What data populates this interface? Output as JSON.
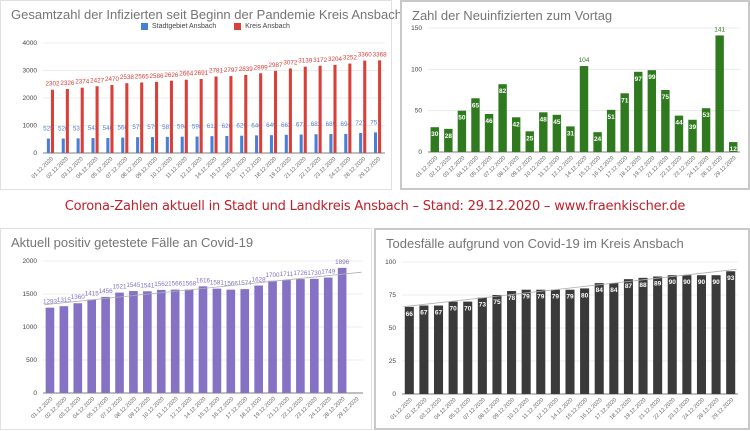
{
  "caption": "Corona-Zahlen aktuell in Stadt und Landkreis Ansbach – Stand: 29.12.2020 – www.fraenkischer.de",
  "chart_data": [
    {
      "type": "bar",
      "title": "Gesamtzahl der Infizierten seit Beginn der Pandemie Kreis Ansbach",
      "categories": [
        "01.12.2020",
        "02.12.2020",
        "03.12.2020",
        "04.12.2020",
        "05.12.2020",
        "07.12.2020",
        "08.12.2020",
        "09.12.2020",
        "10.12.2020",
        "11.12.2020",
        "12.12.2020",
        "14.12.2020",
        "15.12.2020",
        "16.12.2020",
        "17.12.2020",
        "18.12.2020",
        "19.12.2020",
        "21.12.2020",
        "22.12.2020",
        "23.12.2020",
        "24.12.2020",
        "28.12.2020",
        "29.12.2020"
      ],
      "series": [
        {
          "name": "Stadtgebiet Ansbach",
          "color": "#4a7fd8",
          "values": [
            525,
            526,
            531,
            543,
            546,
            560,
            575,
            579,
            587,
            594,
            598,
            612,
            620,
            629,
            640,
            649,
            663,
            671,
            682,
            689,
            694,
            727,
            751
          ]
        },
        {
          "name": "Kreis Ansbach",
          "color": "#d8403a",
          "values": [
            2302,
            2326,
            2374,
            2427,
            2470,
            2538,
            2565,
            2586,
            2626,
            2664,
            2691,
            2781,
            2797,
            2839,
            2899,
            2987,
            3072,
            3139,
            3172,
            3204,
            3252,
            3360,
            3368
          ]
        }
      ],
      "yticks": [
        0,
        1000,
        2000,
        3000,
        4000
      ],
      "ylim": [
        0,
        4000
      ],
      "legend": "top",
      "grid": true,
      "xlabel": "",
      "ylabel": ""
    },
    {
      "type": "bar",
      "title": "Zahl der Neuinfizierten zum Vortag",
      "categories": [
        "01.12.2020",
        "02.12.2020",
        "03.12.2020",
        "04.12.2020",
        "05.12.2020",
        "07.12.2020",
        "08.12.2020",
        "09.12.2020",
        "10.12.2020",
        "11.12.2020",
        "12.12.2020",
        "14.12.2020",
        "15.12.2020",
        "16.12.2020",
        "17.12.2020",
        "18.12.2020",
        "19.12.2020",
        "21.12.2020",
        "22.12.2020",
        "23.12.2020",
        "24.12.2020",
        "28.12.2020",
        "29.12.2020"
      ],
      "series": [
        {
          "name": "Neuinfizierte",
          "color": "#2f7a1f",
          "values": [
            30,
            28,
            50,
            65,
            46,
            82,
            42,
            25,
            48,
            45,
            31,
            104,
            24,
            51,
            71,
            97,
            99,
            75,
            44,
            39,
            53,
            141,
            12
          ]
        }
      ],
      "yticks": [
        0,
        50,
        100,
        150
      ],
      "ylim": [
        0,
        150
      ],
      "grid": true,
      "xlabel": "",
      "ylabel": ""
    },
    {
      "type": "bar",
      "title": "Aktuell positiv getestete Fälle an Covid-19",
      "categories": [
        "01.12.2020",
        "02.12.2020",
        "03.12.2020",
        "04.12.2020",
        "05.12.2020",
        "07.12.2020",
        "08.12.2020",
        "09.12.2020",
        "10.12.2020",
        "11.12.2020",
        "12.12.2020",
        "14.12.2020",
        "15.12.2020",
        "16.12.2020",
        "17.12.2020",
        "18.12.2020",
        "19.12.2020",
        "21.12.2020",
        "22.12.2020",
        "23.12.2020",
        "24.12.2020",
        "28.12.2020",
        "29.12.2020"
      ],
      "series": [
        {
          "name": "Aktuell positiv",
          "color": "#8572c4",
          "values": [
            1293,
            1315,
            1360,
            1415,
            1456,
            1521,
            1545,
            1541,
            1562,
            1566,
            1568,
            1616,
            1581,
            1566,
            1574,
            1628,
            1700,
            1711,
            1726,
            1730,
            1749,
            1896,
            null
          ]
        }
      ],
      "trendline": true,
      "yticks": [
        0,
        500,
        1000,
        1500,
        2000
      ],
      "ylim": [
        0,
        2000
      ],
      "grid": true,
      "xlabel": "",
      "ylabel": ""
    },
    {
      "type": "bar",
      "title": "Todesfälle aufgrund von Covid-19 im Kreis Ansbach",
      "categories": [
        "01.12.2020",
        "02.12.2020",
        "03.12.2020",
        "04.12.2020",
        "05.12.2020",
        "07.12.2020",
        "08.12.2020",
        "09.12.2020",
        "10.12.2020",
        "11.12.2020",
        "12.12.2020",
        "14.12.2020",
        "15.12.2020",
        "16.12.2020",
        "17.12.2020",
        "18.12.2020",
        "19.12.2020",
        "21.12.2020",
        "22.12.2020",
        "23.12.2020",
        "24.12.2020",
        "28.12.2020",
        "29.12.2020"
      ],
      "series": [
        {
          "name": "Todesfälle",
          "color": "#3a3a3a",
          "values": [
            66,
            67,
            67,
            70,
            70,
            73,
            75,
            78,
            79,
            79,
            79,
            79,
            80,
            84,
            84,
            87,
            88,
            89,
            90,
            90,
            90,
            90,
            93
          ]
        }
      ],
      "trendline": true,
      "yticks": [
        0,
        25,
        50,
        75,
        100
      ],
      "ylim": [
        0,
        100
      ],
      "grid": true,
      "xlabel": "",
      "ylabel": ""
    }
  ]
}
